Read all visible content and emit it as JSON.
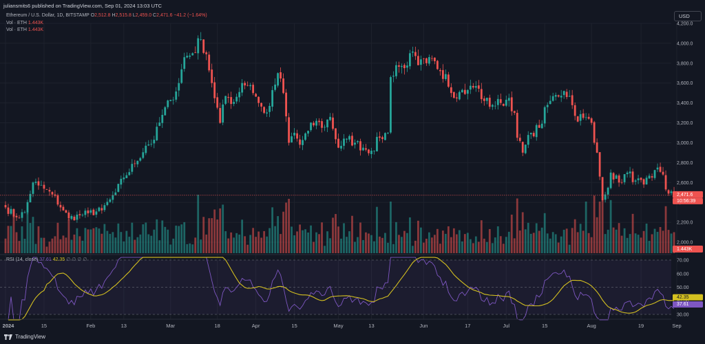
{
  "header": {
    "publish_line": "juliansmits6 published on TradingView.com, Sep 01, 2024 13:03 UTC"
  },
  "legend": {
    "symbol": "Ethereum / U.S. Dollar, 1D, BITSTAMP",
    "ohlc": [
      {
        "k": "O",
        "v": "2,512.8"
      },
      {
        "k": "H",
        "v": "2,515.8"
      },
      {
        "k": "L",
        "v": "2,459.0"
      },
      {
        "k": "C",
        "v": "2,471.6"
      }
    ],
    "change": "−41.2 (−1.64%)",
    "vol1_label": "Vol · ETH",
    "vol1_value": "1.443K",
    "vol2_label": "Vol · ETH",
    "vol2_value": "1.443K",
    "rsi_label": "RSI (14, close)",
    "rsi_value": "37.61",
    "rsi_ma_value": "42.35",
    "rsi_extra": "∅ ∅ ∅ ∅"
  },
  "currency_button": "USD",
  "footer": {
    "brand": "TradingView"
  },
  "colors": {
    "up": "#26a69a",
    "down": "#ef5350",
    "rsi_line": "#7e57c2",
    "rsi_ma": "#d4c020",
    "bg": "#131722"
  },
  "chart_data": [
    {
      "type": "candlestick",
      "title": "Ethereum / U.S. Dollar, 1D, BITSTAMP",
      "ylim": [
        1950,
        4260
      ],
      "y_ticks": [
        "2,000.0",
        "2,200.0",
        "2,400.0",
        "2,600.0",
        "2,800.0",
        "3,000.0",
        "3,200.0",
        "3,400.0",
        "3,600.0",
        "3,800.0",
        "4,000.0",
        "4,200.0"
      ],
      "x_ticks": [
        "2024",
        "15",
        "Feb",
        "13",
        "Mar",
        "18",
        "Apr",
        "15",
        "May",
        "13",
        "Jun",
        "17",
        "Jul",
        "15",
        "Aug",
        "19",
        "Sep"
      ],
      "last_price_label": "2,471.6",
      "countdown_label": "10:56:39",
      "close_path": [
        [
          "2024-01-01",
          2350
        ],
        [
          "2024-01-05",
          2250
        ],
        [
          "2024-01-08",
          2300
        ],
        [
          "2024-01-11",
          2600
        ],
        [
          "2024-01-13",
          2570
        ],
        [
          "2024-01-18",
          2480
        ],
        [
          "2024-01-22",
          2320
        ],
        [
          "2024-01-24",
          2240
        ],
        [
          "2024-01-28",
          2270
        ],
        [
          "2024-01-31",
          2290
        ],
        [
          "2024-02-05",
          2320
        ],
        [
          "2024-02-08",
          2430
        ],
        [
          "2024-02-10",
          2500
        ],
        [
          "2024-02-13",
          2650
        ],
        [
          "2024-02-17",
          2790
        ],
        [
          "2024-02-21",
          2970
        ],
        [
          "2024-02-24",
          3030
        ],
        [
          "2024-02-27",
          3280
        ],
        [
          "2024-03-01",
          3430
        ],
        [
          "2024-03-04",
          3600
        ],
        [
          "2024-03-06",
          3860
        ],
        [
          "2024-03-09",
          3900
        ],
        [
          "2024-03-12",
          4040
        ],
        [
          "2024-03-14",
          3890
        ],
        [
          "2024-03-16",
          3600
        ],
        [
          "2024-03-19",
          3200
        ],
        [
          "2024-03-21",
          3470
        ],
        [
          "2024-03-24",
          3410
        ],
        [
          "2024-03-27",
          3600
        ],
        [
          "2024-03-30",
          3580
        ],
        [
          "2024-04-02",
          3400
        ],
        [
          "2024-04-04",
          3300
        ],
        [
          "2024-04-06",
          3370
        ],
        [
          "2024-04-09",
          3700
        ],
        [
          "2024-04-11",
          3500
        ],
        [
          "2024-04-13",
          3000
        ],
        [
          "2024-04-15",
          3100
        ],
        [
          "2024-04-17",
          2980
        ],
        [
          "2024-04-20",
          3120
        ],
        [
          "2024-04-23",
          3220
        ],
        [
          "2024-04-25",
          3150
        ],
        [
          "2024-04-28",
          3260
        ],
        [
          "2024-05-01",
          2950
        ],
        [
          "2024-05-04",
          3040
        ],
        [
          "2024-05-07",
          3000
        ],
        [
          "2024-05-10",
          2950
        ],
        [
          "2024-05-13",
          2920
        ],
        [
          "2024-05-16",
          3050
        ],
        [
          "2024-05-19",
          3100
        ],
        [
          "2024-05-20",
          3660
        ],
        [
          "2024-05-22",
          3780
        ],
        [
          "2024-05-25",
          3750
        ],
        [
          "2024-05-27",
          3900
        ],
        [
          "2024-05-30",
          3780
        ],
        [
          "2024-06-02",
          3800
        ],
        [
          "2024-06-05",
          3820
        ],
        [
          "2024-06-07",
          3720
        ],
        [
          "2024-06-09",
          3690
        ],
        [
          "2024-06-11",
          3500
        ],
        [
          "2024-06-14",
          3510
        ],
        [
          "2024-06-17",
          3530
        ],
        [
          "2024-06-20",
          3570
        ],
        [
          "2024-06-23",
          3420
        ],
        [
          "2024-06-26",
          3380
        ],
        [
          "2024-06-29",
          3400
        ],
        [
          "2024-07-02",
          3450
        ],
        [
          "2024-07-04",
          3300
        ],
        [
          "2024-07-05",
          3050
        ],
        [
          "2024-07-07",
          2900
        ],
        [
          "2024-07-10",
          3100
        ],
        [
          "2024-07-13",
          3150
        ],
        [
          "2024-07-16",
          3380
        ],
        [
          "2024-07-19",
          3480
        ],
        [
          "2024-07-22",
          3520
        ],
        [
          "2024-07-24",
          3470
        ],
        [
          "2024-07-26",
          3270
        ],
        [
          "2024-07-29",
          3250
        ],
        [
          "2024-08-01",
          3200
        ],
        [
          "2024-08-02",
          3000
        ],
        [
          "2024-08-03",
          2900
        ],
        [
          "2024-08-05",
          2420
        ],
        [
          "2024-08-06",
          2480
        ],
        [
          "2024-08-08",
          2700
        ],
        [
          "2024-08-11",
          2600
        ],
        [
          "2024-08-14",
          2700
        ],
        [
          "2024-08-17",
          2620
        ],
        [
          "2024-08-20",
          2580
        ],
        [
          "2024-08-23",
          2650
        ],
        [
          "2024-08-25",
          2750
        ],
        [
          "2024-08-27",
          2680
        ],
        [
          "2024-08-28",
          2530
        ],
        [
          "2024-08-31",
          2471.6
        ]
      ]
    },
    {
      "type": "bar",
      "title": "Vol · ETH",
      "last_value": "1.443K"
    },
    {
      "type": "line",
      "title": "RSI (14, close)",
      "ylim": [
        28,
        72
      ],
      "y_ticks": [
        "30.00",
        "40.00",
        "50.00",
        "60.00",
        "70.00"
      ],
      "series": [
        {
          "name": "RSI (14, close)",
          "last_label": "37.61"
        },
        {
          "name": "RSI-based MA",
          "last_label": "42.35"
        }
      ]
    }
  ]
}
